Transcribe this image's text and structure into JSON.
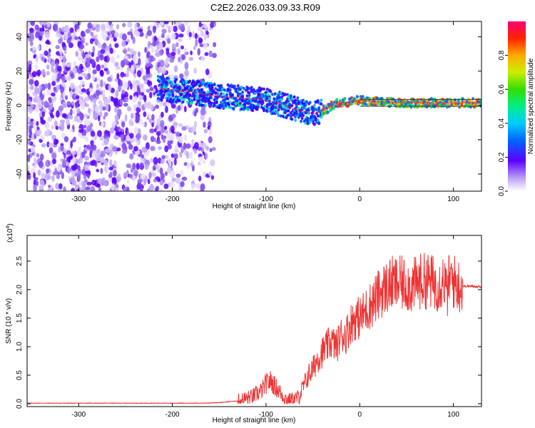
{
  "title": "C2E2.2026.033.09.33.R09",
  "chart_data": [
    {
      "type": "heatmap",
      "xlabel": "Height of straight line (km)",
      "ylabel": "Frequency (Hz)",
      "xlim": [
        -355,
        130
      ],
      "ylim": [
        -50,
        49
      ],
      "xticks": [
        -300,
        -200,
        -100,
        0,
        100
      ],
      "yticks": [
        -40,
        -20,
        0,
        20,
        40
      ],
      "colorbar": {
        "label": "Normalized spectral amplitude",
        "range": [
          0,
          1
        ],
        "ticks": [
          "0.0",
          "0.2",
          "0.4",
          "0.6",
          "0.8"
        ]
      },
      "ridge": {
        "x": [
          -215,
          -200,
          -180,
          -160,
          -140,
          -120,
          -100,
          -85,
          -70,
          -55,
          -50,
          -45,
          -35,
          -25,
          -10,
          0,
          20,
          50,
          80,
          100,
          130
        ],
        "y": [
          10,
          9,
          8,
          6,
          5,
          4,
          3,
          1,
          -2,
          -4,
          -5,
          -4,
          -2,
          1,
          2,
          3,
          2,
          1.5,
          1.5,
          1.5,
          1.5
        ]
      }
    },
    {
      "type": "line",
      "xlabel": "Height of straight line (km)",
      "ylabel": "SNR (10 * v/v)",
      "scale_label": "(x10",
      "scale_exp": "4",
      "xlim": [
        -355,
        130
      ],
      "ylim": [
        -0.05,
        2.95
      ],
      "xticks": [
        -300,
        -200,
        -100,
        0,
        100
      ],
      "yticks": [
        "0.0",
        "0.5",
        "1.0",
        "1.5",
        "2.0",
        "2.5"
      ],
      "color": "#ee3333",
      "series": [
        {
          "x": [
            -355,
            -300,
            -250,
            -200,
            -170,
            -150,
            -130,
            -115,
            -105,
            -100,
            -95,
            -90,
            -85,
            -80,
            -75,
            -70,
            -65,
            -60,
            -55,
            -50,
            -45,
            -40,
            -35,
            -30,
            -25,
            -20,
            -15,
            -10,
            -5,
            0,
            5,
            10,
            15,
            20,
            25,
            30,
            35,
            40,
            45,
            50,
            55,
            60,
            65,
            70,
            75,
            80,
            85,
            90,
            93,
            96,
            100,
            105,
            110,
            120,
            130
          ],
          "values": [
            0.01,
            0.01,
            0.01,
            0.01,
            0.01,
            0.02,
            0.05,
            0.12,
            0.22,
            0.35,
            0.4,
            0.3,
            0.2,
            0.1,
            0.06,
            0.08,
            0.12,
            0.3,
            0.5,
            0.6,
            0.8,
            0.9,
            1.0,
            1.1,
            1.0,
            1.2,
            1.2,
            1.4,
            1.5,
            1.5,
            1.6,
            1.7,
            1.8,
            1.9,
            2.0,
            2.05,
            2.1,
            2.1,
            2.1,
            2.1,
            2.05,
            2.1,
            2.15,
            2.15,
            2.15,
            2.1,
            2.1,
            2.2,
            1.9,
            2.2,
            2.15,
            2.08,
            2.06,
            2.06,
            2.05
          ]
        }
      ]
    }
  ]
}
